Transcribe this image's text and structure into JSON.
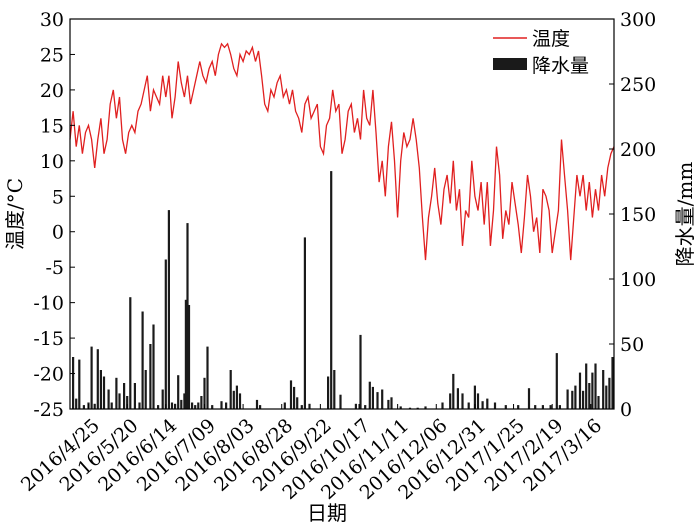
{
  "chart_data": {
    "type": "line+bar",
    "xlabel": "日期",
    "ylabel_left": "温度/°C",
    "ylabel_right": "降水量/mm",
    "ylim_left": [
      -25,
      30
    ],
    "ylim_right": [
      0,
      300
    ],
    "yticks_left": [
      -25,
      -20,
      -15,
      -10,
      -5,
      0,
      5,
      10,
      15,
      20,
      25,
      30
    ],
    "yticks_right": [
      0,
      50,
      100,
      150,
      200,
      250,
      300
    ],
    "x_range": [
      "2016-04-13",
      "2017-03-31"
    ],
    "x_ticks": [
      "2016/4/25",
      "2016/5/20",
      "2016/6/14",
      "2016/7/09",
      "2016/8/03",
      "2016/8/28",
      "2016/9/22",
      "2016/10/17",
      "2016/11/11",
      "2016/12/06",
      "2016/12/31",
      "2017/1/25",
      "2017/2/19",
      "2017/3/16"
    ],
    "legend_position": "top-right",
    "grid": false,
    "colors": {
      "temperature": "#e02020",
      "precipitation": "#1a1a1a"
    },
    "series": [
      {
        "name": "温度",
        "type": "line",
        "axis": "left",
        "points": [
          [
            "2016-04-13",
            13
          ],
          [
            "2016-04-15",
            17
          ],
          [
            "2016-04-17",
            12
          ],
          [
            "2016-04-19",
            15
          ],
          [
            "2016-04-21",
            11
          ],
          [
            "2016-04-23",
            14
          ],
          [
            "2016-04-25",
            15
          ],
          [
            "2016-04-27",
            13
          ],
          [
            "2016-04-29",
            9
          ],
          [
            "2016-05-01",
            13
          ],
          [
            "2016-05-03",
            16
          ],
          [
            "2016-05-05",
            11
          ],
          [
            "2016-05-07",
            13
          ],
          [
            "2016-05-09",
            18
          ],
          [
            "2016-05-11",
            20
          ],
          [
            "2016-05-13",
            16
          ],
          [
            "2016-05-15",
            19
          ],
          [
            "2016-05-17",
            13
          ],
          [
            "2016-05-19",
            11
          ],
          [
            "2016-05-21",
            14
          ],
          [
            "2016-05-23",
            15
          ],
          [
            "2016-05-25",
            14
          ],
          [
            "2016-05-27",
            17
          ],
          [
            "2016-05-29",
            18
          ],
          [
            "2016-05-31",
            20
          ],
          [
            "2016-06-02",
            22
          ],
          [
            "2016-06-04",
            17
          ],
          [
            "2016-06-06",
            20
          ],
          [
            "2016-06-08",
            19
          ],
          [
            "2016-06-10",
            18
          ],
          [
            "2016-06-12",
            22
          ],
          [
            "2016-06-14",
            19
          ],
          [
            "2016-06-16",
            22
          ],
          [
            "2016-06-18",
            16
          ],
          [
            "2016-06-20",
            19
          ],
          [
            "2016-06-22",
            24
          ],
          [
            "2016-06-24",
            21
          ],
          [
            "2016-06-26",
            19
          ],
          [
            "2016-06-28",
            22
          ],
          [
            "2016-06-30",
            18
          ],
          [
            "2016-07-02",
            20
          ],
          [
            "2016-07-04",
            22
          ],
          [
            "2016-07-06",
            24
          ],
          [
            "2016-07-08",
            22
          ],
          [
            "2016-07-10",
            21
          ],
          [
            "2016-07-12",
            23
          ],
          [
            "2016-07-14",
            24
          ],
          [
            "2016-07-16",
            22
          ],
          [
            "2016-07-18",
            25
          ],
          [
            "2016-07-20",
            26.5
          ],
          [
            "2016-07-22",
            26
          ],
          [
            "2016-07-24",
            26.5
          ],
          [
            "2016-07-26",
            25
          ],
          [
            "2016-07-28",
            23
          ],
          [
            "2016-07-30",
            22
          ],
          [
            "2016-08-01",
            25
          ],
          [
            "2016-08-03",
            24
          ],
          [
            "2016-08-05",
            25.5
          ],
          [
            "2016-08-07",
            25
          ],
          [
            "2016-08-09",
            26
          ],
          [
            "2016-08-11",
            24
          ],
          [
            "2016-08-13",
            25.5
          ],
          [
            "2016-08-15",
            22
          ],
          [
            "2016-08-17",
            18
          ],
          [
            "2016-08-19",
            17
          ],
          [
            "2016-08-21",
            20
          ],
          [
            "2016-08-23",
            19
          ],
          [
            "2016-08-25",
            21
          ],
          [
            "2016-08-27",
            22
          ],
          [
            "2016-08-29",
            19
          ],
          [
            "2016-08-31",
            20
          ],
          [
            "2016-09-02",
            18
          ],
          [
            "2016-09-04",
            20
          ],
          [
            "2016-09-06",
            17
          ],
          [
            "2016-09-08",
            16
          ],
          [
            "2016-09-10",
            14
          ],
          [
            "2016-09-12",
            18
          ],
          [
            "2016-09-14",
            19
          ],
          [
            "2016-09-16",
            16
          ],
          [
            "2016-09-18",
            17
          ],
          [
            "2016-09-20",
            18
          ],
          [
            "2016-09-22",
            12
          ],
          [
            "2016-09-24",
            11
          ],
          [
            "2016-09-26",
            15
          ],
          [
            "2016-09-28",
            16
          ],
          [
            "2016-09-30",
            20
          ],
          [
            "2016-10-02",
            17
          ],
          [
            "2016-10-04",
            18
          ],
          [
            "2016-10-06",
            11
          ],
          [
            "2016-10-08",
            13
          ],
          [
            "2016-10-10",
            17
          ],
          [
            "2016-10-12",
            18
          ],
          [
            "2016-10-14",
            14
          ],
          [
            "2016-10-16",
            16
          ],
          [
            "2016-10-18",
            13
          ],
          [
            "2016-10-20",
            20
          ],
          [
            "2016-10-22",
            16
          ],
          [
            "2016-10-24",
            15
          ],
          [
            "2016-10-26",
            20
          ],
          [
            "2016-10-28",
            14
          ],
          [
            "2016-10-30",
            7
          ],
          [
            "2016-11-01",
            10
          ],
          [
            "2016-11-03",
            5
          ],
          [
            "2016-11-05",
            12
          ],
          [
            "2016-11-07",
            15.5
          ],
          [
            "2016-11-09",
            10
          ],
          [
            "2016-11-11",
            2
          ],
          [
            "2016-11-13",
            10
          ],
          [
            "2016-11-15",
            14
          ],
          [
            "2016-11-17",
            12
          ],
          [
            "2016-11-19",
            13
          ],
          [
            "2016-11-21",
            16
          ],
          [
            "2016-11-23",
            13
          ],
          [
            "2016-11-25",
            9
          ],
          [
            "2016-11-27",
            2
          ],
          [
            "2016-11-29",
            -4
          ],
          [
            "2016-12-01",
            2
          ],
          [
            "2016-12-03",
            5
          ],
          [
            "2016-12-05",
            9
          ],
          [
            "2016-12-07",
            4
          ],
          [
            "2016-12-09",
            1
          ],
          [
            "2016-12-11",
            6
          ],
          [
            "2016-12-13",
            8
          ],
          [
            "2016-12-15",
            4
          ],
          [
            "2016-12-17",
            10
          ],
          [
            "2016-12-19",
            3
          ],
          [
            "2016-12-21",
            6
          ],
          [
            "2016-12-23",
            -2
          ],
          [
            "2016-12-25",
            3
          ],
          [
            "2016-12-27",
            2
          ],
          [
            "2016-12-29",
            10
          ],
          [
            "2016-12-31",
            5
          ],
          [
            "2017-01-02",
            3
          ],
          [
            "2017-01-04",
            7
          ],
          [
            "2017-01-06",
            1
          ],
          [
            "2017-01-08",
            7
          ],
          [
            "2017-01-10",
            -2
          ],
          [
            "2017-01-12",
            3
          ],
          [
            "2017-01-14",
            12
          ],
          [
            "2017-01-16",
            8
          ],
          [
            "2017-01-18",
            -1
          ],
          [
            "2017-01-20",
            3
          ],
          [
            "2017-01-22",
            1
          ],
          [
            "2017-01-24",
            7
          ],
          [
            "2017-01-26",
            4
          ],
          [
            "2017-01-28",
            1
          ],
          [
            "2017-01-30",
            -3
          ],
          [
            "2017-02-01",
            2
          ],
          [
            "2017-02-03",
            8
          ],
          [
            "2017-02-05",
            5
          ],
          [
            "2017-02-07",
            0
          ],
          [
            "2017-02-09",
            2
          ],
          [
            "2017-02-11",
            -3
          ],
          [
            "2017-02-13",
            6
          ],
          [
            "2017-02-15",
            5
          ],
          [
            "2017-02-17",
            3
          ],
          [
            "2017-02-19",
            -3
          ],
          [
            "2017-02-21",
            0
          ],
          [
            "2017-02-23",
            3
          ],
          [
            "2017-02-25",
            13
          ],
          [
            "2017-02-27",
            8
          ],
          [
            "2017-03-01",
            3
          ],
          [
            "2017-03-03",
            -4
          ],
          [
            "2017-03-05",
            2
          ],
          [
            "2017-03-07",
            8
          ],
          [
            "2017-03-09",
            5
          ],
          [
            "2017-03-11",
            8
          ],
          [
            "2017-03-13",
            3
          ],
          [
            "2017-03-15",
            7
          ],
          [
            "2017-03-17",
            2
          ],
          [
            "2017-03-19",
            6
          ],
          [
            "2017-03-21",
            3
          ],
          [
            "2017-03-23",
            8
          ],
          [
            "2017-03-25",
            5
          ],
          [
            "2017-03-27",
            9
          ],
          [
            "2017-03-29",
            11
          ],
          [
            "2017-03-31",
            12
          ]
        ]
      },
      {
        "name": "降水量",
        "type": "bar",
        "axis": "right",
        "points": [
          [
            "2016-04-15",
            40
          ],
          [
            "2016-04-17",
            8
          ],
          [
            "2016-04-19",
            38
          ],
          [
            "2016-04-22",
            3
          ],
          [
            "2016-04-25",
            5
          ],
          [
            "2016-04-27",
            48
          ],
          [
            "2016-04-29",
            4
          ],
          [
            "2016-05-01",
            46
          ],
          [
            "2016-05-03",
            30
          ],
          [
            "2016-05-05",
            25
          ],
          [
            "2016-05-08",
            15
          ],
          [
            "2016-05-10",
            5
          ],
          [
            "2016-05-13",
            24
          ],
          [
            "2016-05-15",
            12
          ],
          [
            "2016-05-18",
            20
          ],
          [
            "2016-05-20",
            10
          ],
          [
            "2016-05-22",
            86
          ],
          [
            "2016-05-25",
            20
          ],
          [
            "2016-05-28",
            5
          ],
          [
            "2016-05-30",
            75
          ],
          [
            "2016-06-01",
            30
          ],
          [
            "2016-06-04",
            50
          ],
          [
            "2016-06-06",
            65
          ],
          [
            "2016-06-09",
            3
          ],
          [
            "2016-06-12",
            15
          ],
          [
            "2016-06-14",
            115
          ],
          [
            "2016-06-16",
            153
          ],
          [
            "2016-06-18",
            5
          ],
          [
            "2016-06-20",
            4
          ],
          [
            "2016-06-22",
            26
          ],
          [
            "2016-06-24",
            7
          ],
          [
            "2016-06-26",
            12
          ],
          [
            "2016-06-27",
            84
          ],
          [
            "2016-06-28",
            143
          ],
          [
            "2016-06-29",
            80
          ],
          [
            "2016-07-01",
            5
          ],
          [
            "2016-07-03",
            3
          ],
          [
            "2016-07-05",
            5
          ],
          [
            "2016-07-07",
            10
          ],
          [
            "2016-07-09",
            24
          ],
          [
            "2016-07-11",
            48
          ],
          [
            "2016-07-14",
            3
          ],
          [
            "2016-07-20",
            6
          ],
          [
            "2016-07-23",
            5
          ],
          [
            "2016-07-26",
            30
          ],
          [
            "2016-07-28",
            14
          ],
          [
            "2016-07-30",
            18
          ],
          [
            "2016-08-01",
            12
          ],
          [
            "2016-08-12",
            7
          ],
          [
            "2016-08-14",
            3
          ],
          [
            "2016-08-30",
            5
          ],
          [
            "2016-09-03",
            22
          ],
          [
            "2016-09-05",
            17
          ],
          [
            "2016-09-07",
            9
          ],
          [
            "2016-09-10",
            3
          ],
          [
            "2016-09-12",
            132
          ],
          [
            "2016-09-15",
            4
          ],
          [
            "2016-09-27",
            25
          ],
          [
            "2016-09-29",
            183
          ],
          [
            "2016-10-01",
            30
          ],
          [
            "2016-10-05",
            11
          ],
          [
            "2016-10-15",
            4
          ],
          [
            "2016-10-18",
            57
          ],
          [
            "2016-10-21",
            3
          ],
          [
            "2016-10-24",
            21
          ],
          [
            "2016-10-26",
            17
          ],
          [
            "2016-10-29",
            13
          ],
          [
            "2016-11-01",
            15
          ],
          [
            "2016-11-05",
            7
          ],
          [
            "2016-11-07",
            9
          ],
          [
            "2016-11-13",
            2
          ],
          [
            "2016-11-19",
            1
          ],
          [
            "2016-11-24",
            1
          ],
          [
            "2016-11-29",
            2
          ],
          [
            "2016-12-10",
            5
          ],
          [
            "2016-12-15",
            12
          ],
          [
            "2016-12-17",
            27
          ],
          [
            "2016-12-20",
            16
          ],
          [
            "2016-12-23",
            12
          ],
          [
            "2016-12-27",
            5
          ],
          [
            "2016-12-31",
            18
          ],
          [
            "2017-01-02",
            12
          ],
          [
            "2017-01-05",
            6
          ],
          [
            "2017-01-08",
            8
          ],
          [
            "2017-01-13",
            5
          ],
          [
            "2017-01-20",
            3
          ],
          [
            "2017-01-28",
            3
          ],
          [
            "2017-02-04",
            16
          ],
          [
            "2017-02-08",
            3
          ],
          [
            "2017-02-13",
            3
          ],
          [
            "2017-02-18",
            3
          ],
          [
            "2017-02-22",
            43
          ],
          [
            "2017-02-24",
            3
          ],
          [
            "2017-03-01",
            15
          ],
          [
            "2017-03-04",
            14
          ],
          [
            "2017-03-06",
            18
          ],
          [
            "2017-03-09",
            28
          ],
          [
            "2017-03-11",
            14
          ],
          [
            "2017-03-13",
            35
          ],
          [
            "2017-03-15",
            20
          ],
          [
            "2017-03-17",
            28
          ],
          [
            "2017-03-19",
            35
          ],
          [
            "2017-03-21",
            10
          ],
          [
            "2017-03-24",
            30
          ],
          [
            "2017-03-26",
            18
          ],
          [
            "2017-03-28",
            24
          ],
          [
            "2017-03-30",
            40
          ]
        ]
      }
    ]
  }
}
